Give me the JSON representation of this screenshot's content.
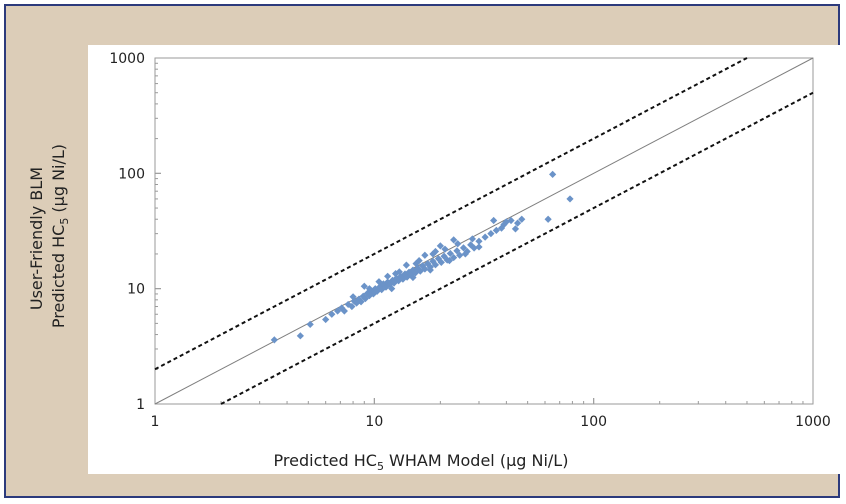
{
  "chart_data": {
    "type": "scatter",
    "title": "",
    "xlabel": {
      "pre": "Predicted HC",
      "sub": "5",
      "post": " WHAM Model (µg Ni/L)"
    },
    "ylabel": {
      "line1": "User-Friendly BLM",
      "line2": {
        "pre": "Predicted HC",
        "sub": "5",
        "post": " (µg Ni/L)"
      }
    },
    "xscale": "log",
    "yscale": "log",
    "xlim": [
      1,
      1000
    ],
    "ylim": [
      1,
      1000
    ],
    "xticks": [
      "1",
      "10",
      "100",
      "1000"
    ],
    "yticks": [
      "1",
      "10",
      "100",
      "1000"
    ],
    "grid": false,
    "legend": "none",
    "marker_color": "#6b93c8",
    "reference_lines": [
      {
        "name": "1:1",
        "style": "solid",
        "color": "#7f7f7f",
        "factor": 1
      },
      {
        "name": "upper factor of 2",
        "style": "dashed",
        "color": "#111111",
        "factor": 2
      },
      {
        "name": "lower factor of 2",
        "style": "dashed",
        "color": "#111111",
        "factor": 0.5
      }
    ],
    "series": [
      {
        "values": [
          [
            3.5,
            3.6
          ],
          [
            4.6,
            3.9
          ],
          [
            5.1,
            4.9
          ],
          [
            6.0,
            5.4
          ],
          [
            6.4,
            6.0
          ],
          [
            6.8,
            6.4
          ],
          [
            7.1,
            6.8
          ],
          [
            7.3,
            6.4
          ],
          [
            7.6,
            7.3
          ],
          [
            7.9,
            7.0
          ],
          [
            8.1,
            7.8
          ],
          [
            8.3,
            7.5
          ],
          [
            8.5,
            8.1
          ],
          [
            8.7,
            7.7
          ],
          [
            8.9,
            8.6
          ],
          [
            9.1,
            8.2
          ],
          [
            9.3,
            9.1
          ],
          [
            9.5,
            8.7
          ],
          [
            9.7,
            9.5
          ],
          [
            9.9,
            9.0
          ],
          [
            10.1,
            10.0
          ],
          [
            10.3,
            9.5
          ],
          [
            10.6,
            10.4
          ],
          [
            10.8,
            9.8
          ],
          [
            11.0,
            11.0
          ],
          [
            11.3,
            10.3
          ],
          [
            11.5,
            11.4
          ],
          [
            11.8,
            10.9
          ],
          [
            12.1,
            11.8
          ],
          [
            12.3,
            11.2
          ],
          [
            12.6,
            12.3
          ],
          [
            12.9,
            11.7
          ],
          [
            13.2,
            12.8
          ],
          [
            13.5,
            12.1
          ],
          [
            13.8,
            13.4
          ],
          [
            14.1,
            12.6
          ],
          [
            14.4,
            13.9
          ],
          [
            14.7,
            13.2
          ],
          [
            15.0,
            14.5
          ],
          [
            15.4,
            13.7
          ],
          [
            15.8,
            15.0
          ],
          [
            16.2,
            14.2
          ],
          [
            16.6,
            15.8
          ],
          [
            17.0,
            14.8
          ],
          [
            17.5,
            16.5
          ],
          [
            18.0,
            15.4
          ],
          [
            18.5,
            17.3
          ],
          [
            19.0,
            16.1
          ],
          [
            19.6,
            18.2
          ],
          [
            20.2,
            16.9
          ],
          [
            20.8,
            19.1
          ],
          [
            21.5,
            17.7
          ],
          [
            22.2,
            20.2
          ],
          [
            23.0,
            18.6
          ],
          [
            23.8,
            21.3
          ],
          [
            24.5,
            19.5
          ],
          [
            25.5,
            22.6
          ],
          [
            26.5,
            21.0
          ],
          [
            27.5,
            24.0
          ],
          [
            28.5,
            22.5
          ],
          [
            30.0,
            25.8
          ],
          [
            32.0,
            28.0
          ],
          [
            34.0,
            30.0
          ],
          [
            36.0,
            32.0
          ],
          [
            38.0,
            33.5
          ],
          [
            40.0,
            38.0
          ],
          [
            42.0,
            39.0
          ],
          [
            45.0,
            37.0
          ],
          [
            47.0,
            40.0
          ],
          [
            35.0,
            39.0
          ],
          [
            39.0,
            36.0
          ],
          [
            44.0,
            33.0
          ],
          [
            62.0,
            40.0
          ],
          [
            65.0,
            98.0
          ],
          [
            78.0,
            60.0
          ],
          [
            9.0,
            10.5
          ],
          [
            11.5,
            12.8
          ],
          [
            14.0,
            16.0
          ],
          [
            17.0,
            19.5
          ],
          [
            20.0,
            23.5
          ],
          [
            23.0,
            26.5
          ],
          [
            12.0,
            10.0
          ],
          [
            15.0,
            12.5
          ],
          [
            18.0,
            14.5
          ],
          [
            22.0,
            17.5
          ],
          [
            26.0,
            20.0
          ],
          [
            30.0,
            23.0
          ],
          [
            13.0,
            14.0
          ],
          [
            16.0,
            17.5
          ],
          [
            19.0,
            21.0
          ],
          [
            21.0,
            22.0
          ],
          [
            24.0,
            24.5
          ],
          [
            28.0,
            27.0
          ],
          [
            8.0,
            8.5
          ],
          [
            9.5,
            10.0
          ],
          [
            10.5,
            11.5
          ],
          [
            12.5,
            13.5
          ],
          [
            15.5,
            16.5
          ],
          [
            18.5,
            20.0
          ]
        ]
      }
    ]
  }
}
